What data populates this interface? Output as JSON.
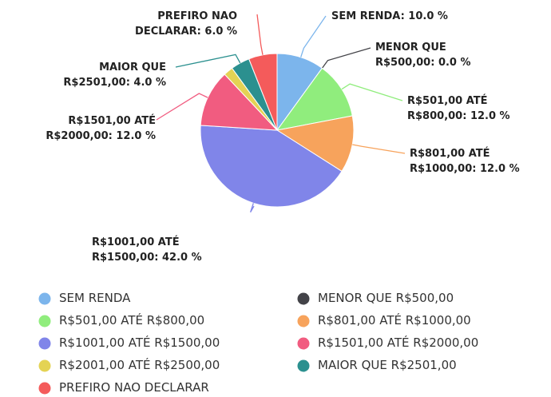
{
  "chart_data": {
    "type": "pie",
    "categories": [
      "SEM RENDA",
      "MENOR QUE R$500,00",
      "R$501,00 ATÉ R$800,00",
      "R$801,00 ATÉ R$1000,00",
      "R$1001,00 ATÉ R$1500,00",
      "R$1501,00 ATÉ R$2000,00",
      "R$2001,00 ATÉ R$2500,00",
      "MAIOR QUE R$2501,00",
      "PREFIRO NAO DECLARAR"
    ],
    "values": [
      10,
      0,
      12,
      12,
      42,
      12,
      2,
      4,
      6
    ],
    "value_labels": [
      "SEM RENDA: 10.0 %",
      "MENOR QUE\nR$500,00: 0.0 %",
      "R$501,00 ATÉ\nR$800,00: 12.0 %",
      "R$801,00 ATÉ\nR$1000,00: 12.0 %",
      "R$1001,00 ATÉ\nR$1500,00: 42.0 %",
      "R$1501,00 ATÉ\nR$2000,00: 12.0 %",
      null,
      "MAIOR QUE\nR$2501,00: 4.0 %",
      "PREFIRO NAO\nDECLARAR: 6.0 %"
    ],
    "colors": [
      "#7cb5ec",
      "#434348",
      "#90ed7d",
      "#f7a35c",
      "#8085e9",
      "#f15c80",
      "#e4d354",
      "#2b908f",
      "#f45b5b"
    ],
    "legend": "bottom"
  }
}
